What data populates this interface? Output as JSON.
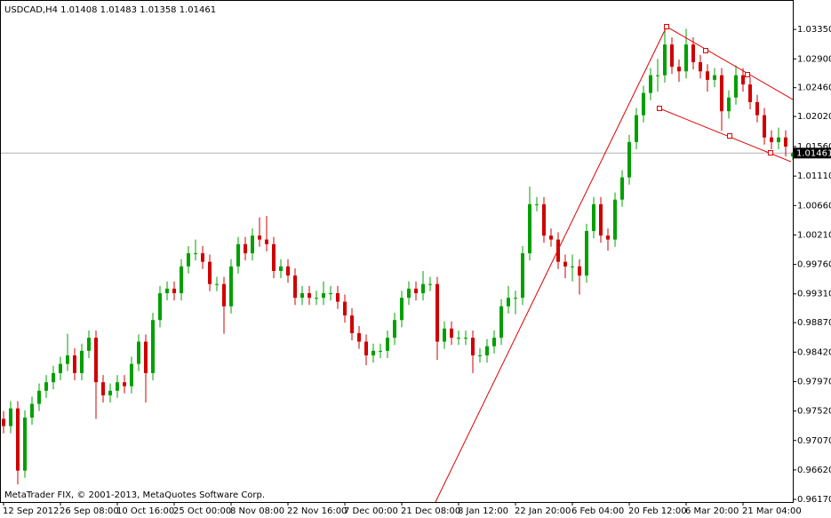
{
  "chart_data": {
    "type": "candlestick",
    "title": "USDCAD,H4  1.01408 1.01483 1.01358 1.01461",
    "footer": "MetaTrader FIX, © 2001-2013, MetaQuotes Software Corp.",
    "up_color": "#00a000",
    "down_color": "#d00000",
    "current_price": 1.01461,
    "categories": [
      "12 Sep 2012",
      null,
      null,
      null,
      null,
      null,
      null,
      null,
      "26 Sep 08:00",
      null,
      null,
      null,
      null,
      null,
      null,
      null,
      "10 Oct 16:00",
      null,
      null,
      null,
      null,
      null,
      null,
      null,
      "25 Oct 00:00",
      null,
      null,
      null,
      null,
      null,
      null,
      null,
      "8 Nov 08:00",
      null,
      null,
      null,
      null,
      null,
      null,
      null,
      "22 Nov 16:00",
      null,
      null,
      null,
      null,
      null,
      null,
      null,
      "7 Dec 00:00",
      null,
      null,
      null,
      null,
      null,
      null,
      null,
      "21 Dec 08:00",
      null,
      null,
      null,
      null,
      null,
      null,
      null,
      "8 Jan 12:00",
      null,
      null,
      null,
      null,
      null,
      null,
      null,
      "22 Jan 20:00",
      null,
      null,
      null,
      null,
      null,
      null,
      null,
      "6 Feb 04:00",
      null,
      null,
      null,
      null,
      null,
      null,
      null,
      "20 Feb 12:00",
      null,
      null,
      null,
      null,
      null,
      null,
      null,
      "6 Mar 20:00",
      null,
      null,
      null,
      null,
      null,
      null,
      null,
      "21 Mar 04:00",
      null,
      null,
      null,
      null,
      null,
      null,
      null
    ],
    "open": [
      0.974,
      0.9729,
      0.9756,
      0.9661,
      0.9742,
      0.9763,
      0.9783,
      0.9796,
      0.981,
      0.9824,
      0.9837,
      0.981,
      0.9844,
      0.9864,
      0.9796,
      0.9776,
      0.9783,
      0.9796,
      0.979,
      0.9824,
      0.9858,
      0.981,
      0.9891,
      0.9932,
      0.9939,
      0.9932,
      0.9973,
      0.9993,
      0.9993,
      0.998,
      0.9946,
      0.9946,
      0.9912,
      0.9973,
      1.0007,
      0.9993,
      1.002,
      1.0014,
      1.0007,
      0.9966,
      0.9973,
      0.9959,
      0.9925,
      0.9932,
      0.9925,
      0.9925,
      0.9932,
      0.9932,
      0.9919,
      0.9898,
      0.9871,
      0.9858,
      0.9837,
      0.9844,
      0.9844,
      0.9864,
      0.9891,
      0.9925,
      0.9939,
      0.9932,
      0.9946,
      0.9946,
      0.9858,
      0.9878,
      0.9864,
      0.9864,
      0.9864,
      0.9837,
      0.9837,
      0.9851,
      0.9864,
      0.9912,
      0.9925,
      0.9925,
      0.9993,
      1.0068,
      1.0068,
      1.002,
      1.0014,
      0.998,
      0.9973,
      0.9973,
      0.9959,
      1.0027,
      1.0068,
      1.002,
      1.0014,
      1.0075,
      1.0109,
      1.0163,
      1.0204,
      1.0238,
      1.0265,
      1.0265,
      1.0312,
      1.0278,
      1.0271,
      1.0312,
      1.0285,
      1.0271,
      1.0258,
      1.0265,
      1.021,
      1.0231,
      1.0265,
      1.0251,
      1.0224,
      1.0204,
      1.017,
      1.0163,
      1.017,
      1.0141
    ],
    "high": [
      0.9752,
      0.9767,
      0.9767,
      0.9753,
      0.9774,
      0.9794,
      0.9807,
      0.9821,
      0.9835,
      0.987,
      0.9848,
      0.9855,
      0.9875,
      0.9875,
      0.9807,
      0.9794,
      0.9807,
      0.9807,
      0.9835,
      0.9869,
      0.9869,
      0.9902,
      0.9943,
      0.995,
      0.995,
      0.9984,
      1.0004,
      1.0014,
      1.0004,
      0.9991,
      0.9957,
      0.9957,
      0.9984,
      1.0018,
      1.0018,
      1.0031,
      1.0048,
      1.005,
      1.0018,
      0.9984,
      0.9984,
      0.997,
      0.9943,
      0.9943,
      0.9936,
      0.995,
      0.9943,
      0.9943,
      0.993,
      0.9909,
      0.9882,
      0.9869,
      0.9855,
      0.9855,
      0.9875,
      0.9902,
      0.9936,
      0.995,
      0.995,
      0.9966,
      0.9957,
      0.9957,
      0.9889,
      0.9889,
      0.9875,
      0.9875,
      0.9875,
      0.9848,
      0.9862,
      0.9875,
      0.9923,
      0.9943,
      0.9936,
      1.0004,
      1.0095,
      1.0079,
      1.0079,
      1.0031,
      1.0025,
      0.9991,
      0.9991,
      0.9984,
      1.0038,
      1.0079,
      1.0079,
      1.0031,
      1.0086,
      1.012,
      1.0174,
      1.0215,
      1.0249,
      1.0276,
      1.029,
      1.0335,
      1.0323,
      1.0289,
      1.0336,
      1.0323,
      1.0296,
      1.0282,
      1.0276,
      1.0276,
      1.0242,
      1.028,
      1.0276,
      1.0262,
      1.0235,
      1.0215,
      1.0181,
      1.0185,
      1.0181,
      1.0148
    ],
    "low": [
      0.9718,
      0.9718,
      0.964,
      0.965,
      0.9731,
      0.9752,
      0.9772,
      0.9785,
      0.9799,
      0.9813,
      0.9799,
      0.9799,
      0.9833,
      0.974,
      0.9765,
      0.9765,
      0.9772,
      0.9779,
      0.9779,
      0.9813,
      0.9765,
      0.9799,
      0.988,
      0.9921,
      0.9921,
      0.9921,
      0.9962,
      0.9982,
      0.9969,
      0.9935,
      0.9935,
      0.987,
      0.9901,
      0.9962,
      0.9982,
      0.9982,
      1.0003,
      0.9996,
      0.9955,
      0.9955,
      0.9948,
      0.9914,
      0.9914,
      0.9914,
      0.9914,
      0.9914,
      0.9921,
      0.9908,
      0.9887,
      0.986,
      0.9847,
      0.9822,
      0.9826,
      0.9833,
      0.9833,
      0.9853,
      0.988,
      0.9914,
      0.9921,
      0.9921,
      0.9935,
      0.983,
      0.9847,
      0.9853,
      0.9853,
      0.9853,
      0.981,
      0.9826,
      0.9826,
      0.984,
      0.9853,
      0.9901,
      0.99,
      0.9914,
      0.9982,
      1.0057,
      1.0009,
      1.0003,
      0.9969,
      0.9955,
      0.995,
      0.993,
      0.9948,
      1.0016,
      1.0009,
      0.9997,
      1.0003,
      1.0064,
      1.0098,
      1.0152,
      1.0193,
      1.0227,
      1.024,
      1.0254,
      1.0267,
      1.0255,
      1.026,
      1.0274,
      1.026,
      1.024,
      1.0247,
      1.018,
      1.0199,
      1.022,
      1.024,
      1.0213,
      1.0193,
      1.0159,
      1.0152,
      1.0152,
      1.0141,
      1.0136
    ],
    "close": [
      0.9729,
      0.9756,
      0.9661,
      0.9742,
      0.9763,
      0.9783,
      0.9796,
      0.981,
      0.9824,
      0.9837,
      0.981,
      0.9844,
      0.9864,
      0.9796,
      0.9776,
      0.9783,
      0.9796,
      0.979,
      0.9824,
      0.9858,
      0.981,
      0.9891,
      0.9932,
      0.9939,
      0.9932,
      0.9973,
      0.9993,
      0.9993,
      0.998,
      0.9946,
      0.9946,
      0.9912,
      0.9973,
      1.0007,
      0.9993,
      1.002,
      1.0014,
      1.0007,
      0.9966,
      0.9973,
      0.9959,
      0.9925,
      0.9932,
      0.9925,
      0.9925,
      0.9932,
      0.9932,
      0.9919,
      0.9898,
      0.9871,
      0.9858,
      0.9837,
      0.9844,
      0.9844,
      0.9864,
      0.9891,
      0.9925,
      0.9939,
      0.9932,
      0.9946,
      0.9946,
      0.9858,
      0.9878,
      0.9864,
      0.9864,
      0.9864,
      0.9837,
      0.9837,
      0.9851,
      0.9864,
      0.9912,
      0.9925,
      0.9925,
      0.9993,
      1.0068,
      1.0068,
      1.002,
      1.0014,
      0.998,
      0.9973,
      0.9973,
      0.9959,
      1.0027,
      1.0068,
      1.002,
      1.0014,
      1.0075,
      1.0109,
      1.0163,
      1.0204,
      1.0238,
      1.0265,
      1.0265,
      1.0312,
      1.0278,
      1.0271,
      1.0312,
      1.0285,
      1.0271,
      1.0258,
      1.0265,
      1.021,
      1.0231,
      1.0265,
      1.0251,
      1.0224,
      1.0204,
      1.017,
      1.0163,
      1.017,
      1.0156,
      1.0146
    ],
    "ylim": [
      0.9613,
      1.038
    ],
    "yticks": [
      {
        "value": 1.0335,
        "label": "1.03350"
      },
      {
        "value": 1.029,
        "label": "1.02900"
      },
      {
        "value": 1.0246,
        "label": "1.02460"
      },
      {
        "value": 1.0202,
        "label": "1.02020"
      },
      {
        "value": 1.0156,
        "label": "1.01560"
      },
      {
        "value": 1.0111,
        "label": "1.01110"
      },
      {
        "value": 1.0066,
        "label": "1.00660"
      },
      {
        "value": 1.0021,
        "label": "1.00210"
      },
      {
        "value": 0.9976,
        "label": "0.99760"
      },
      {
        "value": 0.9931,
        "label": "0.99310"
      },
      {
        "value": 0.9887,
        "label": "0.98870"
      },
      {
        "value": 0.9842,
        "label": "0.98420"
      },
      {
        "value": 0.9797,
        "label": "0.97970"
      },
      {
        "value": 0.9752,
        "label": "0.97520"
      },
      {
        "value": 0.9707,
        "label": "0.97070"
      },
      {
        "value": 0.9662,
        "label": "0.96620"
      },
      {
        "value": 0.9617,
        "label": "0.96170"
      }
    ]
  }
}
